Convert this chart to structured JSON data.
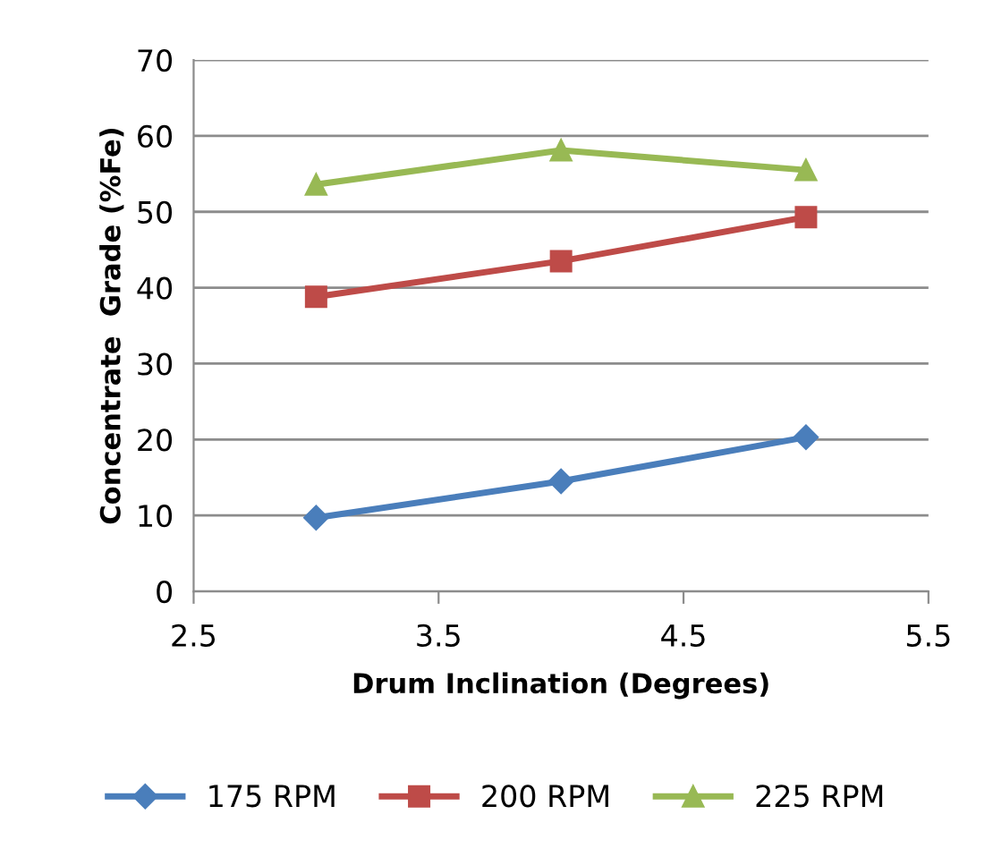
{
  "chart_data": {
    "type": "line",
    "xlabel": "Drum Inclination (Degrees)",
    "ylabel": "Concentrate  Grade (%Fe)",
    "x": [
      3,
      4,
      5
    ],
    "series": [
      {
        "name": "175 RPM",
        "color": "#4a7ebb",
        "marker": "diamond",
        "values": [
          9.7,
          14.5,
          20.3
        ]
      },
      {
        "name": "200 RPM",
        "color": "#be4b48",
        "marker": "square",
        "values": [
          38.8,
          43.5,
          49.3
        ]
      },
      {
        "name": "225 RPM",
        "color": "#98b954",
        "marker": "triangle",
        "values": [
          53.6,
          58.1,
          55.5
        ]
      }
    ],
    "xlim": [
      2.5,
      5.5
    ],
    "xticks": [
      2.5,
      3.5,
      4.5,
      5.5
    ],
    "ylim": [
      0,
      70
    ],
    "yticks": [
      0,
      10,
      20,
      30,
      40,
      50,
      60,
      70
    ],
    "grid": "y",
    "legend": "bottom",
    "line_style": "solid"
  }
}
